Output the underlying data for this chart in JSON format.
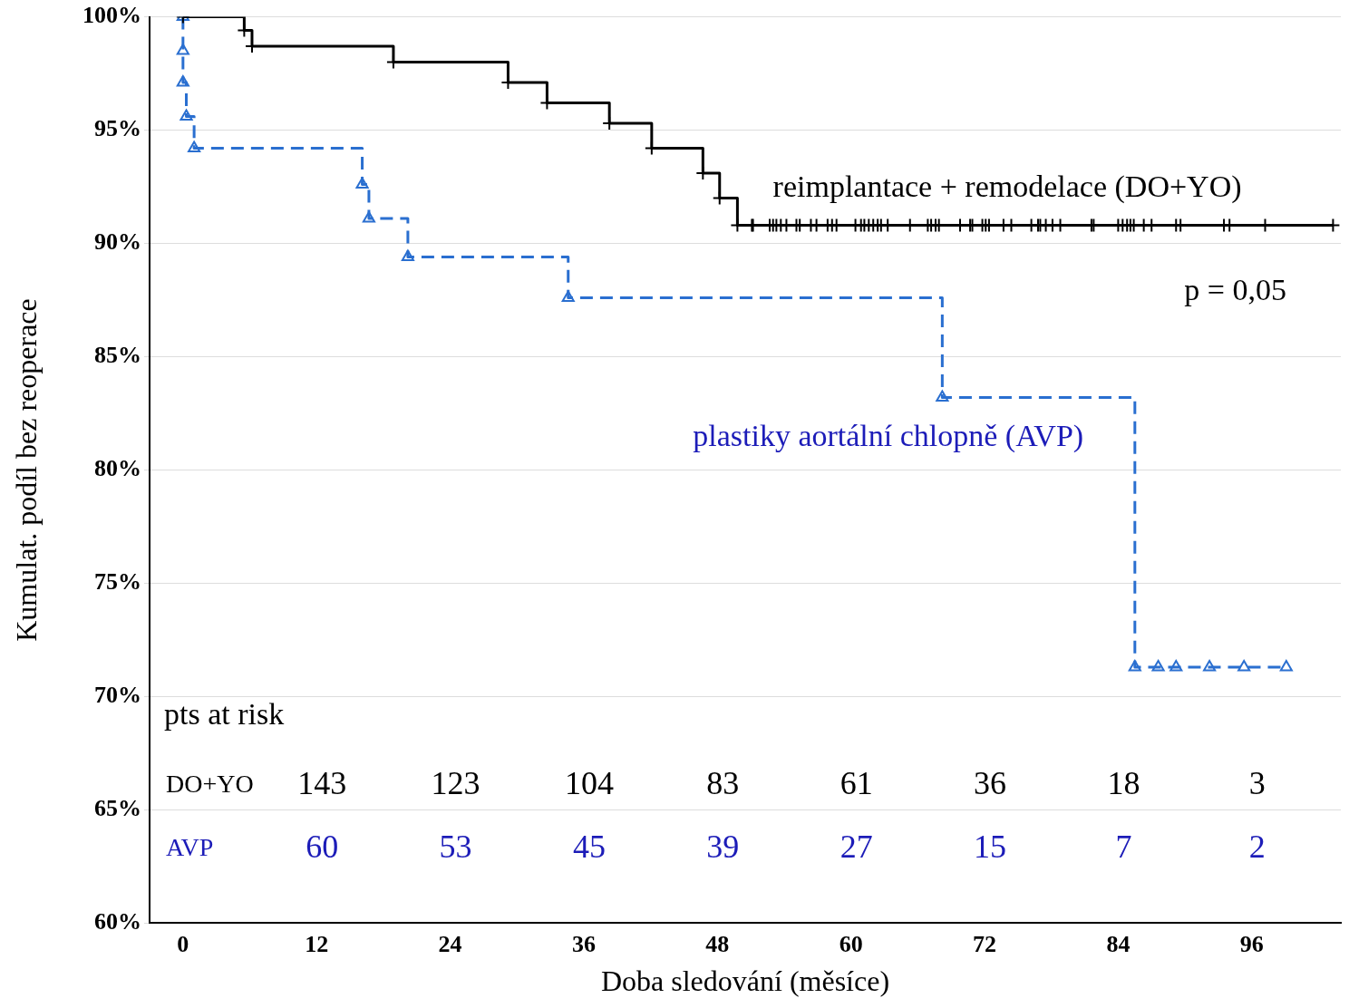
{
  "chart_data": {
    "type": "step",
    "xlabel": "Doba sledování (měsíce)",
    "ylabel": "Kumulat. podíl bez reoperace",
    "xlim": [
      -3,
      104
    ],
    "xticks": [
      0,
      12,
      24,
      36,
      48,
      60,
      72,
      84,
      96
    ],
    "ylim": [
      60,
      100
    ],
    "yticks": [
      {
        "value": 60,
        "label": "60%"
      },
      {
        "value": 65,
        "label": "65%"
      },
      {
        "value": 70,
        "label": "70%"
      },
      {
        "value": 75,
        "label": "75%"
      },
      {
        "value": 80,
        "label": "80%"
      },
      {
        "value": 85,
        "label": "85%"
      },
      {
        "value": 90,
        "label": "90%"
      },
      {
        "value": 95,
        "label": "95%"
      },
      {
        "value": 100,
        "label": "100%"
      }
    ],
    "grid": "y",
    "legend": false,
    "series": [
      {
        "name": "reimplantace + remodelace (DO+YO)",
        "color": "#000000",
        "marker": "cross",
        "line_style": "solid",
        "x": [
          0,
          5.5,
          6.2,
          18.9,
          29.2,
          32.7,
          38.3,
          42.1,
          46.7,
          48.2,
          49.8,
          51.1,
          51.2,
          52.7,
          53.0,
          53.3,
          53.7,
          54.2,
          55.1,
          55.4,
          56.4,
          56.9,
          57.9,
          58.3,
          58.7,
          60.4,
          60.9,
          61.2,
          61.6,
          62.0,
          62.4,
          62.7,
          63.3,
          65.3,
          66.9,
          67.2,
          67.6,
          67.9,
          69.8,
          70.7,
          70.9,
          71.8,
          72.1,
          72.4,
          73.7,
          74.4,
          76.2,
          76.8,
          77.0,
          77.5,
          78.1,
          78.8,
          81.6,
          81.8,
          84.0,
          84.4,
          84.8,
          85.1,
          85.4,
          86.3,
          87.0,
          89.2,
          89.6,
          93.5,
          94.0,
          97.2,
          103.3
        ],
        "values": [
          100,
          99.4,
          98.7,
          98.0,
          97.1,
          96.2,
          95.3,
          94.2,
          93.1,
          92.0,
          90.8,
          90.8,
          90.8,
          90.8,
          90.8,
          90.8,
          90.8,
          90.8,
          90.8,
          90.8,
          90.8,
          90.8,
          90.8,
          90.8,
          90.8,
          90.8,
          90.8,
          90.8,
          90.8,
          90.8,
          90.8,
          90.8,
          90.8,
          90.8,
          90.8,
          90.8,
          90.8,
          90.8,
          90.8,
          90.8,
          90.8,
          90.8,
          90.8,
          90.8,
          90.8,
          90.8,
          90.8,
          90.8,
          90.8,
          90.8,
          90.8,
          90.8,
          90.8,
          90.8,
          90.8,
          90.8,
          90.8,
          90.8,
          90.8,
          90.8,
          90.8,
          90.8,
          90.8,
          90.8,
          90.8,
          90.8,
          90.8
        ]
      },
      {
        "name": "plastiky aortální chlopně (AVP)",
        "color": "#2a6fd0",
        "marker": "triangle",
        "line_style": "dashed",
        "x": [
          0,
          0,
          0,
          0.3,
          1.0,
          16.1,
          16.7,
          20.2,
          34.6,
          68.2,
          85.5,
          87.6,
          89.2,
          92.2,
          95.3,
          99.1
        ],
        "values": [
          100,
          98.5,
          97.1,
          95.6,
          94.2,
          92.6,
          91.1,
          89.4,
          87.6,
          83.2,
          71.3,
          71.3,
          71.3,
          71.3,
          71.3,
          71.3
        ]
      }
    ],
    "annotations": [
      "p = 0,05",
      "pts at risk",
      "DO+YO",
      "143",
      "123",
      "104",
      "83",
      "61",
      "36",
      "18",
      "3",
      "AVP",
      "60",
      "53",
      "45",
      "39",
      "27",
      "15",
      "7",
      "2"
    ]
  }
}
